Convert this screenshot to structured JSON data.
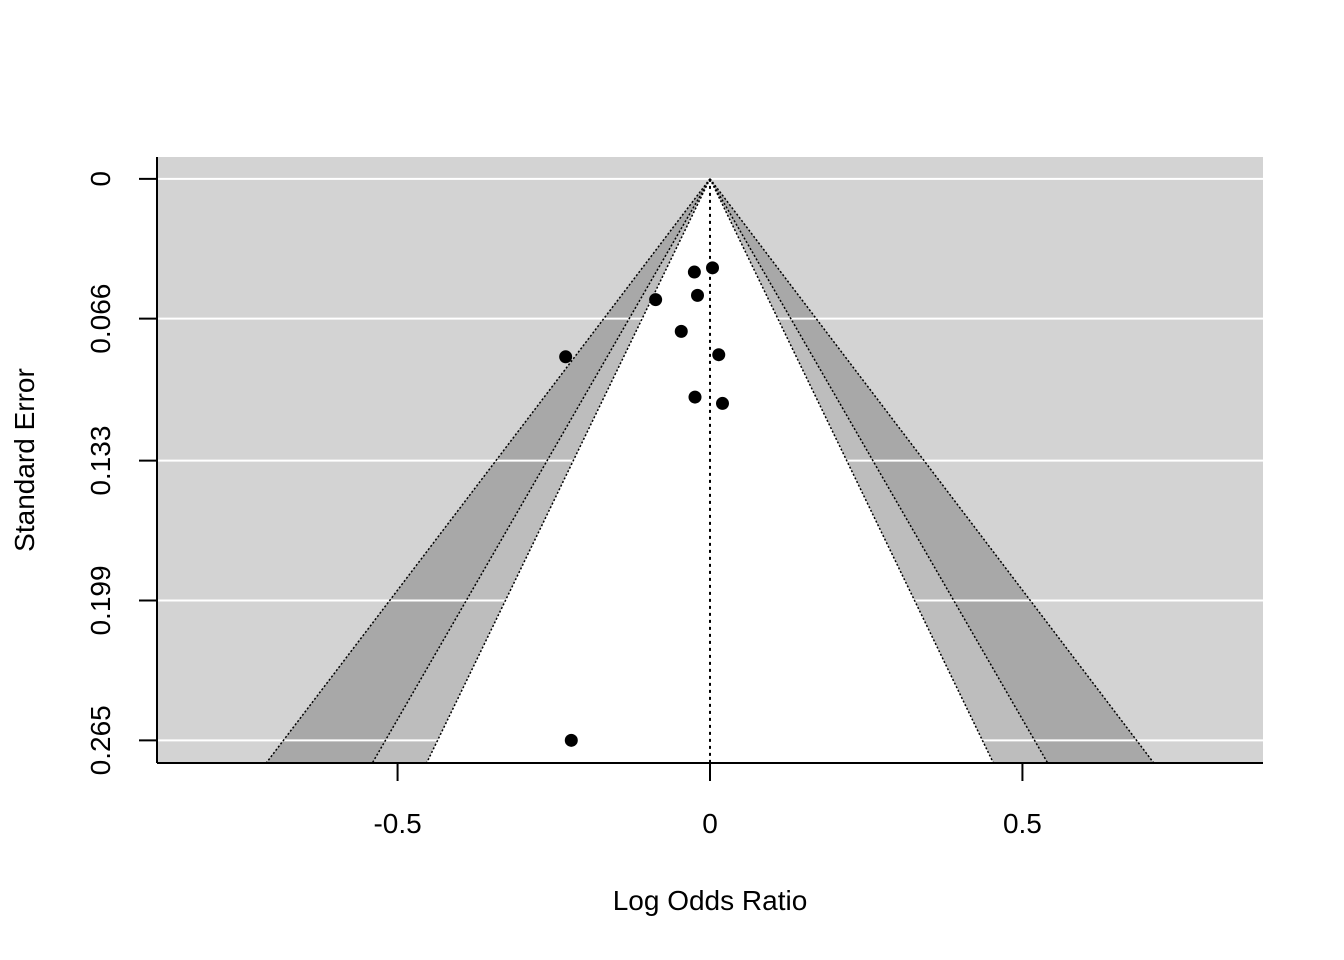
{
  "chart_data": {
    "type": "scatter",
    "subtype": "contour-enhanced funnel plot",
    "title": "",
    "xlabel": "Log Odds Ratio",
    "ylabel": "Standard Error",
    "xlim": [
      -0.885,
      0.885
    ],
    "ylim": [
      0.2757,
      -0.0103
    ],
    "y_reversed": true,
    "x_ticks": [
      {
        "value": -0.5,
        "label": "-0.5"
      },
      {
        "value": 0,
        "label": "0"
      },
      {
        "value": 0.5,
        "label": "0.5"
      }
    ],
    "y_ticks": [
      {
        "value": 0,
        "label": "0"
      },
      {
        "value": 0.066,
        "label": "0.066"
      },
      {
        "value": 0.133,
        "label": "0.133"
      },
      {
        "value": 0.199,
        "label": "0.199"
      },
      {
        "value": 0.265,
        "label": "0.265"
      }
    ],
    "grid": "horizontal, white",
    "center_line": 0,
    "contour_levels": [
      {
        "z": 1.645,
        "color": "#ffffff"
      },
      {
        "z": 1.96,
        "color": "#bdbdbd"
      },
      {
        "z": 2.576,
        "color": "#a8a8a8"
      }
    ],
    "background_color": "#d3d3d3",
    "points": [
      {
        "x": 0.004,
        "y": 0.042
      },
      {
        "x": -0.025,
        "y": 0.044
      },
      {
        "x": -0.02,
        "y": 0.055
      },
      {
        "x": -0.087,
        "y": 0.057
      },
      {
        "x": -0.046,
        "y": 0.072
      },
      {
        "x": 0.014,
        "y": 0.083
      },
      {
        "x": -0.231,
        "y": 0.084
      },
      {
        "x": -0.024,
        "y": 0.103
      },
      {
        "x": 0.02,
        "y": 0.106
      },
      {
        "x": -0.222,
        "y": 0.265
      }
    ]
  }
}
